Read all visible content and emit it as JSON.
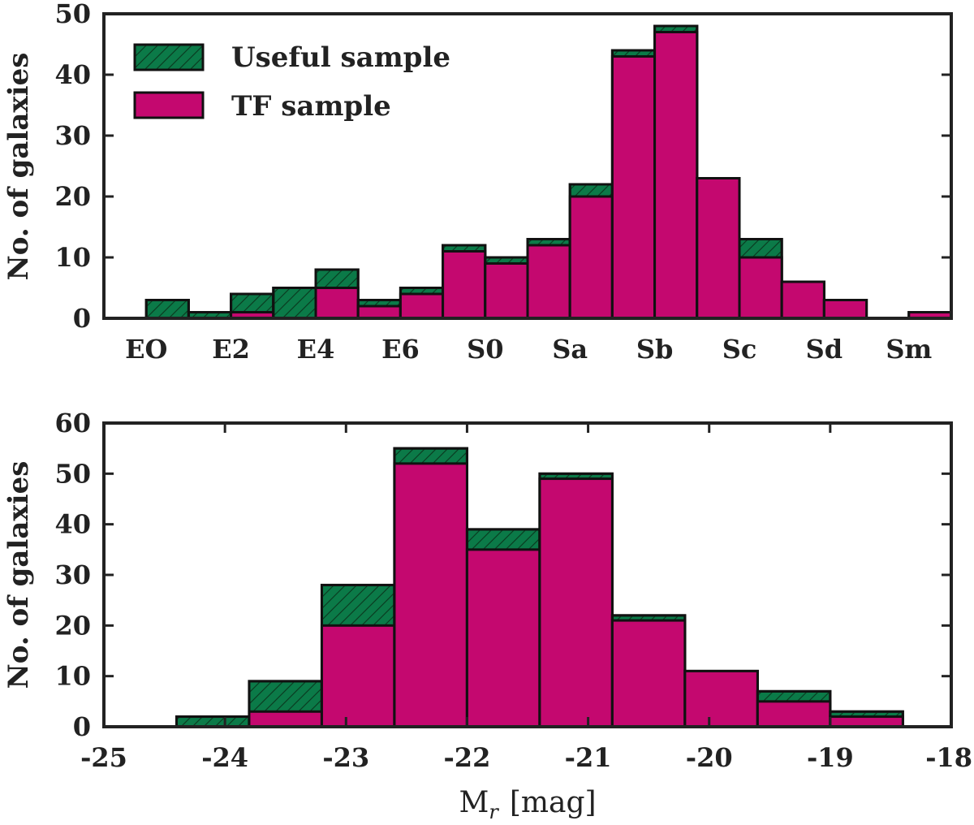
{
  "colors": {
    "useful": "#0b7a48",
    "tf": "#c4086f",
    "edge": "#111111",
    "axis": "#222222"
  },
  "legend": {
    "useful_label": "Useful sample",
    "tf_label": "TF sample"
  },
  "chart_data": [
    {
      "type": "bar",
      "categories": [
        "EO",
        "",
        "E2",
        "",
        "E4",
        "",
        "E6",
        "",
        "S0",
        "",
        "Sa",
        "",
        "Sb",
        "",
        "Sc",
        "",
        "Sd",
        "",
        "Sm",
        ""
      ],
      "category_labels": [
        "EO",
        "E2",
        "E4",
        "E6",
        "S0",
        "Sa",
        "Sb",
        "Sc",
        "Sd",
        "Sm"
      ],
      "series": [
        {
          "name": "Useful sample",
          "values": [
            0,
            3,
            1,
            4,
            5,
            8,
            3,
            5,
            12,
            10,
            13,
            22,
            44,
            48,
            23,
            13,
            6,
            3,
            0,
            1
          ]
        },
        {
          "name": "TF sample",
          "values": [
            0,
            0,
            0,
            1,
            0,
            5,
            2,
            4,
            11,
            9,
            12,
            20,
            43,
            47,
            23,
            10,
            6,
            3,
            0,
            1
          ]
        }
      ],
      "xlabel": "",
      "ylabel": "No. of galaxies",
      "ylim": [
        0,
        50
      ],
      "yticks": [
        0,
        10,
        20,
        30,
        40,
        50
      ],
      "legend_position": "top-left"
    },
    {
      "type": "bar",
      "bin_edges": [
        -25.0,
        -24.4,
        -23.8,
        -23.2,
        -22.6,
        -22.0,
        -21.4,
        -20.8,
        -20.2,
        -19.6,
        -19.0,
        -18.4
      ],
      "series": [
        {
          "name": "Useful sample",
          "values": [
            0,
            2,
            9,
            28,
            55,
            39,
            50,
            22,
            11,
            7,
            3
          ]
        },
        {
          "name": "TF sample",
          "values": [
            0,
            0,
            3,
            20,
            52,
            35,
            49,
            21,
            11,
            5,
            2
          ]
        }
      ],
      "xlabel": "M",
      "xlabel_sub": "r",
      "xlabel_unit": "[mag]",
      "ylabel": "No. of galaxies",
      "xlim": [
        -25,
        -18
      ],
      "xticks": [
        "-25",
        "-24",
        "-23",
        "-22",
        "-21",
        "-20",
        "-19",
        "-18"
      ],
      "ylim": [
        0,
        60
      ],
      "yticks": [
        0,
        10,
        20,
        30,
        40,
        50,
        60
      ]
    }
  ]
}
